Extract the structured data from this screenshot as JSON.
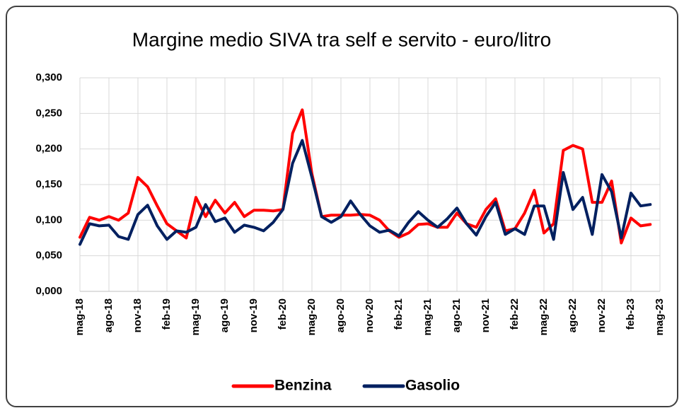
{
  "chart_data": {
    "type": "line",
    "title": "Margine medio SIVA tra self e servito - euro/litro",
    "categories": [
      "mag-18",
      null,
      null,
      "ago-18",
      null,
      null,
      "nov-18",
      null,
      null,
      "feb-19",
      null,
      null,
      "mag-19",
      null,
      null,
      "ago-19",
      null,
      null,
      "nov-19",
      null,
      null,
      "feb-20",
      null,
      null,
      "mag-20",
      null,
      null,
      "ago-20",
      null,
      null,
      "nov-20",
      null,
      null,
      "feb-21",
      null,
      null,
      "mag-21",
      null,
      null,
      "ago-21",
      null,
      null,
      "nov-21",
      null,
      null,
      "feb-22",
      null,
      null,
      "mag-22",
      null,
      null,
      "ago-22",
      null,
      null,
      "nov-22",
      null,
      null,
      "feb-23",
      null,
      null,
      "mag-23"
    ],
    "series": [
      {
        "name": "Benzina",
        "color": "#ff0000",
        "values": [
          0.076,
          0.104,
          0.1,
          0.105,
          0.1,
          0.11,
          0.16,
          0.147,
          0.12,
          0.095,
          0.085,
          0.075,
          0.132,
          0.105,
          0.128,
          0.11,
          0.125,
          0.105,
          0.114,
          0.114,
          0.113,
          0.115,
          0.222,
          0.255,
          0.165,
          0.105,
          0.107,
          0.107,
          0.107,
          0.108,
          0.107,
          0.1,
          0.085,
          0.076,
          0.082,
          0.094,
          0.095,
          0.09,
          0.09,
          0.11,
          0.095,
          0.09,
          0.115,
          0.13,
          0.085,
          0.088,
          0.11,
          0.142,
          0.082,
          0.095,
          0.198,
          0.205,
          0.2,
          0.125,
          0.125,
          0.155,
          0.068,
          0.103,
          0.092,
          0.094,
          null
        ]
      },
      {
        "name": "Gasolio",
        "color": "#002060",
        "values": [
          0.066,
          0.095,
          0.092,
          0.093,
          0.077,
          0.073,
          0.108,
          0.121,
          0.092,
          0.073,
          0.085,
          0.083,
          0.09,
          0.122,
          0.098,
          0.103,
          0.083,
          0.093,
          0.09,
          0.085,
          0.097,
          0.115,
          0.18,
          0.212,
          0.16,
          0.105,
          0.097,
          0.105,
          0.127,
          0.108,
          0.092,
          0.083,
          0.086,
          0.078,
          0.097,
          0.112,
          0.1,
          0.09,
          0.102,
          0.117,
          0.095,
          0.079,
          0.105,
          0.125,
          0.08,
          0.088,
          0.08,
          0.12,
          0.12,
          0.073,
          0.167,
          0.115,
          0.132,
          0.08,
          0.164,
          0.14,
          0.075,
          0.138,
          0.12,
          0.122,
          null
        ]
      }
    ],
    "ylim": [
      0,
      0.3
    ],
    "yticks": [
      {
        "value": 0,
        "label": "0,000"
      },
      {
        "value": 0.05,
        "label": "0,050"
      },
      {
        "value": 0.1,
        "label": "0,100"
      },
      {
        "value": 0.15,
        "label": "0,150"
      },
      {
        "value": 0.2,
        "label": "0,200"
      },
      {
        "value": 0.25,
        "label": "0,250"
      },
      {
        "value": 0.3,
        "label": "0,300"
      }
    ],
    "grid": true,
    "legend": "bottom"
  }
}
